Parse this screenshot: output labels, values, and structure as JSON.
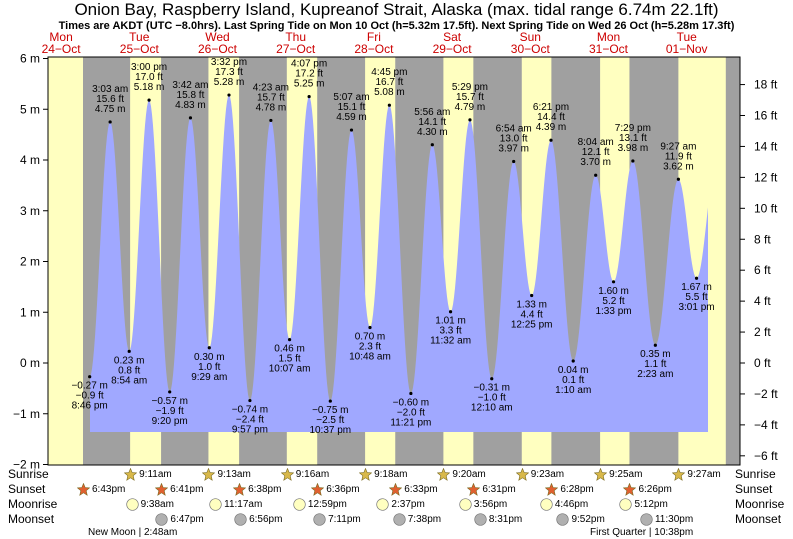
{
  "header": {
    "title": "Onion Bay, Raspberry Island, Kupreanof Strait, Alaska (max. tidal range 6.74m 22.1ft)",
    "subtitle": "Times are AKDT (UTC −8.0hrs). Last Spring Tide on Mon 10 Oct (h=5.32m 17.5ft). Next Spring Tide on Wed 26 Oct (h=5.28m 17.3ft)"
  },
  "colors": {
    "day": "#ffffc0",
    "night": "#a0a0a0",
    "water": "#a0a8ff",
    "dayLabel": "#cc0000",
    "sun": "#d8b84a",
    "sunset": "#e06030",
    "moonrise": "#ffffc0",
    "moonset": "#b0b0b0"
  },
  "chart_data": {
    "type": "area",
    "ylim_m": [
      -2,
      6
    ],
    "yticks_m": [
      "6 m",
      "5 m",
      "4 m",
      "3 m",
      "2 m",
      "1 m",
      "0 m",
      "−1 m",
      "−2 m"
    ],
    "yticks_ft": [
      "18 ft",
      "16 ft",
      "14 ft",
      "12 ft",
      "10 ft",
      "8 ft",
      "6 ft",
      "4 ft",
      "2 ft",
      "0 ft",
      "−2 ft",
      "−4 ft",
      "−6 ft"
    ],
    "days": [
      {
        "dow": "Mon",
        "date": "24−Oct"
      },
      {
        "dow": "Tue",
        "date": "25−Oct"
      },
      {
        "dow": "Wed",
        "date": "26−Oct"
      },
      {
        "dow": "Thu",
        "date": "27−Oct"
      },
      {
        "dow": "Fri",
        "date": "28−Oct"
      },
      {
        "dow": "Sat",
        "date": "29−Oct"
      },
      {
        "dow": "Sun",
        "date": "30−Oct"
      },
      {
        "dow": "Mon",
        "date": "31−Oct"
      },
      {
        "dow": "Tue",
        "date": "01−Nov"
      }
    ],
    "tides": [
      {
        "day": 0,
        "hour": 20.77,
        "m": -0.27,
        "ml": "−0.27 m",
        "ftl": "−0.9 ft",
        "tl": "8:46 pm",
        "type": "low"
      },
      {
        "day": 1,
        "hour": 3.05,
        "m": 4.75,
        "ml": "4.75 m",
        "ftl": "15.6 ft",
        "tl": "3:03 am",
        "type": "high"
      },
      {
        "day": 1,
        "hour": 8.9,
        "m": 0.23,
        "ml": "0.23 m",
        "ftl": "0.8 ft",
        "tl": "8:54 am",
        "type": "low"
      },
      {
        "day": 1,
        "hour": 15.0,
        "m": 5.18,
        "ml": "5.18 m",
        "ftl": "17.0 ft",
        "tl": "3:00 pm",
        "type": "high"
      },
      {
        "day": 1,
        "hour": 21.33,
        "m": -0.57,
        "ml": "−0.57 m",
        "ftl": "−1.9 ft",
        "tl": "9:20 pm",
        "type": "low"
      },
      {
        "day": 2,
        "hour": 3.7,
        "m": 4.83,
        "ml": "4.83 m",
        "ftl": "15.8 ft",
        "tl": "3:42 am",
        "type": "high"
      },
      {
        "day": 2,
        "hour": 9.48,
        "m": 0.3,
        "ml": "0.30 m",
        "ftl": "1.0 ft",
        "tl": "9:29 am",
        "type": "low"
      },
      {
        "day": 2,
        "hour": 15.53,
        "m": 5.28,
        "ml": "5.28 m",
        "ftl": "17.3 ft",
        "tl": "3:32 pm",
        "type": "high"
      },
      {
        "day": 2,
        "hour": 21.95,
        "m": -0.74,
        "ml": "−0.74 m",
        "ftl": "−2.4 ft",
        "tl": "9:57 pm",
        "type": "low"
      },
      {
        "day": 3,
        "hour": 4.38,
        "m": 4.78,
        "ml": "4.78 m",
        "ftl": "15.7 ft",
        "tl": "4:23 am",
        "type": "high"
      },
      {
        "day": 3,
        "hour": 10.12,
        "m": 0.46,
        "ml": "0.46 m",
        "ftl": "1.5 ft",
        "tl": "10:07 am",
        "type": "low"
      },
      {
        "day": 3,
        "hour": 16.12,
        "m": 5.25,
        "ml": "5.25 m",
        "ftl": "17.2 ft",
        "tl": "4:07 pm",
        "type": "high"
      },
      {
        "day": 3,
        "hour": 22.62,
        "m": -0.75,
        "ml": "−0.75 m",
        "ftl": "−2.5 ft",
        "tl": "10:37 pm",
        "type": "low"
      },
      {
        "day": 4,
        "hour": 5.12,
        "m": 4.59,
        "ml": "4.59 m",
        "ftl": "15.1 ft",
        "tl": "5:07 am",
        "type": "high"
      },
      {
        "day": 4,
        "hour": 10.8,
        "m": 0.7,
        "ml": "0.70 m",
        "ftl": "2.3 ft",
        "tl": "10:48 am",
        "type": "low"
      },
      {
        "day": 4,
        "hour": 16.75,
        "m": 5.08,
        "ml": "5.08 m",
        "ftl": "16.7 ft",
        "tl": "4:45 pm",
        "type": "high"
      },
      {
        "day": 4,
        "hour": 23.35,
        "m": -0.6,
        "ml": "−0.60 m",
        "ftl": "−2.0 ft",
        "tl": "11:21 pm",
        "type": "low"
      },
      {
        "day": 5,
        "hour": 5.93,
        "m": 4.3,
        "ml": "4.30 m",
        "ftl": "14.1 ft",
        "tl": "5:56 am",
        "type": "high"
      },
      {
        "day": 5,
        "hour": 11.53,
        "m": 1.01,
        "ml": "1.01 m",
        "ftl": "3.3 ft",
        "tl": "11:32 am",
        "type": "low"
      },
      {
        "day": 5,
        "hour": 17.48,
        "m": 4.79,
        "ml": "4.79 m",
        "ftl": "15.7 ft",
        "tl": "5:29 pm",
        "type": "high"
      },
      {
        "day": 6,
        "hour": 0.17,
        "m": -0.31,
        "ml": "−0.31 m",
        "ftl": "−1.0 ft",
        "tl": "12:10 am",
        "type": "low"
      },
      {
        "day": 6,
        "hour": 6.9,
        "m": 3.97,
        "ml": "3.97 m",
        "ftl": "13.0 ft",
        "tl": "6:54 am",
        "type": "high"
      },
      {
        "day": 6,
        "hour": 12.42,
        "m": 1.33,
        "ml": "1.33 m",
        "ftl": "4.4 ft",
        "tl": "12:25 pm",
        "type": "low"
      },
      {
        "day": 6,
        "hour": 18.35,
        "m": 4.39,
        "ml": "4.39 m",
        "ftl": "14.4 ft",
        "tl": "6:21 pm",
        "type": "high"
      },
      {
        "day": 7,
        "hour": 1.17,
        "m": 0.04,
        "ml": "0.04 m",
        "ftl": "0.1 ft",
        "tl": "1:10 am",
        "type": "low"
      },
      {
        "day": 7,
        "hour": 8.07,
        "m": 3.7,
        "ml": "3.70 m",
        "ftl": "12.1 ft",
        "tl": "8:04 am",
        "type": "high"
      },
      {
        "day": 7,
        "hour": 13.55,
        "m": 1.6,
        "ml": "1.60 m",
        "ftl": "5.2 ft",
        "tl": "1:33 pm",
        "type": "low"
      },
      {
        "day": 7,
        "hour": 19.48,
        "m": 3.98,
        "ml": "3.98 m",
        "ftl": "13.1 ft",
        "tl": "7:29 pm",
        "type": "high"
      },
      {
        "day": 8,
        "hour": 2.38,
        "m": 0.35,
        "ml": "0.35 m",
        "ftl": "1.1 ft",
        "tl": "2:23 am",
        "type": "low"
      },
      {
        "day": 8,
        "hour": 9.45,
        "m": 3.62,
        "ml": "3.62 m",
        "ftl": "11.9 ft",
        "tl": "9:27 am",
        "type": "high"
      },
      {
        "day": 8,
        "hour": 15.02,
        "m": 1.67,
        "ml": "1.67 m",
        "ftl": "5.5 ft",
        "tl": "3:01 pm",
        "type": "low"
      }
    ],
    "sunrise": [
      {
        "day": 1,
        "hour": 9.18,
        "label": "9:11am"
      },
      {
        "day": 2,
        "hour": 9.22,
        "label": "9:13am"
      },
      {
        "day": 3,
        "hour": 9.27,
        "label": "9:16am"
      },
      {
        "day": 4,
        "hour": 9.3,
        "label": "9:18am"
      },
      {
        "day": 5,
        "hour": 9.33,
        "label": "9:20am"
      },
      {
        "day": 6,
        "hour": 9.38,
        "label": "9:23am"
      },
      {
        "day": 7,
        "hour": 9.42,
        "label": "9:25am"
      },
      {
        "day": 8,
        "hour": 9.45,
        "label": "9:27am"
      }
    ],
    "sunset": [
      {
        "day": 0,
        "hour": 18.72,
        "label": "6:43pm"
      },
      {
        "day": 1,
        "hour": 18.68,
        "label": "6:41pm"
      },
      {
        "day": 2,
        "hour": 18.63,
        "label": "6:38pm"
      },
      {
        "day": 3,
        "hour": 18.6,
        "label": "6:36pm"
      },
      {
        "day": 4,
        "hour": 18.55,
        "label": "6:33pm"
      },
      {
        "day": 5,
        "hour": 18.52,
        "label": "6:31pm"
      },
      {
        "day": 6,
        "hour": 18.47,
        "label": "6:28pm"
      },
      {
        "day": 7,
        "hour": 18.43,
        "label": "6:26pm"
      }
    ],
    "moonrise": [
      {
        "day": 1,
        "hour": 9.63,
        "label": "9:38am"
      },
      {
        "day": 2,
        "hour": 11.28,
        "label": "11:17am"
      },
      {
        "day": 3,
        "hour": 12.98,
        "label": "12:59pm"
      },
      {
        "day": 4,
        "hour": 14.62,
        "label": "2:37pm"
      },
      {
        "day": 5,
        "hour": 15.93,
        "label": "3:56pm"
      },
      {
        "day": 6,
        "hour": 16.77,
        "label": "4:46pm"
      },
      {
        "day": 7,
        "hour": 17.2,
        "label": "5:12pm"
      }
    ],
    "moonset": [
      {
        "day": 1,
        "hour": 18.78,
        "label": "6:47pm"
      },
      {
        "day": 2,
        "hour": 18.93,
        "label": "6:56pm"
      },
      {
        "day": 3,
        "hour": 19.18,
        "label": "7:11pm"
      },
      {
        "day": 4,
        "hour": 19.63,
        "label": "7:38pm"
      },
      {
        "day": 5,
        "hour": 20.52,
        "label": "8:31pm"
      },
      {
        "day": 6,
        "hour": 21.87,
        "label": "9:52pm"
      },
      {
        "day": 7,
        "hour": 23.5,
        "label": "11:30pm"
      }
    ]
  },
  "legend": {
    "sunrise": "Sunrise",
    "sunset": "Sunset",
    "moonrise": "Moonrise",
    "moonset": "Moonset",
    "new_moon": "New Moon | 2:48am",
    "first_quarter": "First Quarter | 10:38pm"
  }
}
